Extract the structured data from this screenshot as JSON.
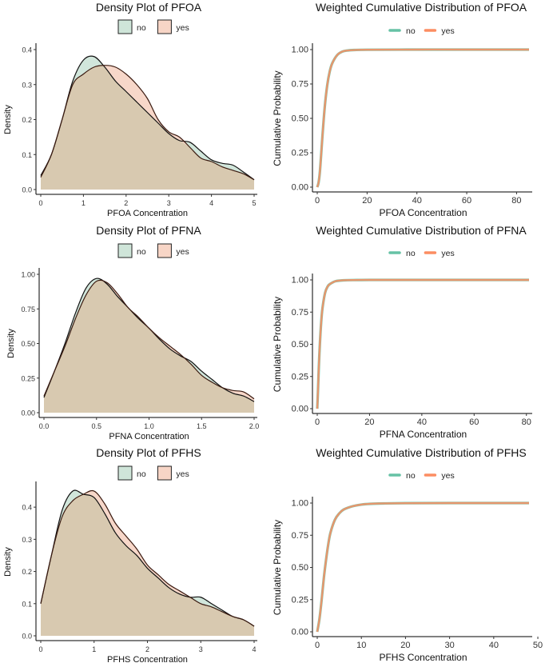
{
  "chart_data": [
    {
      "type": "area",
      "title": "Density Plot of PFOA",
      "xlabel": "PFOA Concentration",
      "ylabel": "Density",
      "xlim": [
        0,
        5
      ],
      "ylim": [
        0,
        0.4
      ],
      "xticks": [
        0,
        1,
        2,
        3,
        4,
        5
      ],
      "xtick_labels": [
        "0",
        "1",
        "2",
        "3",
        "4",
        "5"
      ],
      "yticks": [
        0,
        0.1,
        0.2,
        0.3,
        0.4
      ],
      "ytick_labels": [
        "0.0",
        "0.1",
        "0.2",
        "0.3",
        "0.4"
      ],
      "legend": [
        "no",
        "yes"
      ],
      "legend_position": "top",
      "series": [
        {
          "name": "no",
          "color": "#66c2a5",
          "x": [
            0,
            0.25,
            0.5,
            0.75,
            1.0,
            1.25,
            1.5,
            1.75,
            2.0,
            2.25,
            2.5,
            2.75,
            3.0,
            3.25,
            3.5,
            3.75,
            4.0,
            4.25,
            4.5,
            4.75,
            5.0
          ],
          "y": [
            0.04,
            0.1,
            0.2,
            0.31,
            0.37,
            0.38,
            0.35,
            0.31,
            0.28,
            0.25,
            0.22,
            0.19,
            0.16,
            0.14,
            0.135,
            0.11,
            0.085,
            0.075,
            0.07,
            0.05,
            0.028
          ]
        },
        {
          "name": "yes",
          "color": "#fc8d62",
          "x": [
            0,
            0.25,
            0.5,
            0.75,
            1.0,
            1.25,
            1.5,
            1.75,
            2.0,
            2.25,
            2.5,
            2.75,
            3.0,
            3.25,
            3.5,
            3.75,
            4.0,
            4.25,
            4.5,
            4.75,
            5.0
          ],
          "y": [
            0.035,
            0.1,
            0.2,
            0.3,
            0.33,
            0.35,
            0.355,
            0.35,
            0.33,
            0.3,
            0.26,
            0.2,
            0.165,
            0.15,
            0.12,
            0.09,
            0.08,
            0.065,
            0.055,
            0.045,
            0.028
          ]
        }
      ]
    },
    {
      "type": "line",
      "title": "Weighted Cumulative Distribution of PFOA",
      "xlabel": "PFOA Concentration",
      "ylabel": "Cumulative Probability",
      "xlim": [
        0,
        85
      ],
      "ylim": [
        0,
        1
      ],
      "xticks": [
        0,
        20,
        40,
        60,
        80
      ],
      "xtick_labels": [
        "0",
        "20",
        "40",
        "60",
        "80"
      ],
      "yticks": [
        0,
        0.25,
        0.5,
        0.75,
        1.0
      ],
      "ytick_labels": [
        "0.00",
        "0.25",
        "0.50",
        "0.75",
        "1.00"
      ],
      "legend": [
        "no",
        "yes"
      ],
      "legend_position": "top",
      "series": [
        {
          "name": "no",
          "color": "#66c2a5",
          "x": [
            0,
            0.5,
            1,
            1.5,
            2,
            3,
            4,
            5,
            6,
            8,
            10,
            12,
            15,
            20,
            40,
            60,
            85
          ],
          "y": [
            0,
            0.03,
            0.1,
            0.22,
            0.35,
            0.58,
            0.74,
            0.84,
            0.9,
            0.96,
            0.985,
            0.993,
            0.997,
            0.999,
            1.0,
            1.0,
            1.0
          ]
        },
        {
          "name": "yes",
          "color": "#fc8d62",
          "x": [
            0,
            0.5,
            1,
            1.5,
            2,
            3,
            4,
            5,
            6,
            8,
            10,
            12,
            15,
            20,
            40,
            60,
            85
          ],
          "y": [
            0,
            0.03,
            0.1,
            0.22,
            0.35,
            0.58,
            0.74,
            0.84,
            0.9,
            0.96,
            0.985,
            0.993,
            0.997,
            0.999,
            1.0,
            1.0,
            1.0
          ]
        }
      ]
    },
    {
      "type": "area",
      "title": "Density Plot of PFNA",
      "xlabel": "PFNA Concentration",
      "ylabel": "Density",
      "xlim": [
        0,
        2
      ],
      "ylim": [
        0,
        1
      ],
      "xticks": [
        0,
        0.5,
        1.0,
        1.5,
        2.0
      ],
      "xtick_labels": [
        "0.0",
        "0.5",
        "1.0",
        "1.5",
        "2.0"
      ],
      "yticks": [
        0,
        0.25,
        0.5,
        0.75,
        1.0
      ],
      "ytick_labels": [
        "0.00",
        "0.25",
        "0.50",
        "0.75",
        "1.00"
      ],
      "legend": [
        "no",
        "yes"
      ],
      "legend_position": "top",
      "series": [
        {
          "name": "no",
          "color": "#66c2a5",
          "x": [
            0,
            0.1,
            0.2,
            0.3,
            0.4,
            0.5,
            0.6,
            0.7,
            0.8,
            0.9,
            1.0,
            1.1,
            1.2,
            1.3,
            1.4,
            1.5,
            1.6,
            1.7,
            1.8,
            1.9,
            2.0
          ],
          "y": [
            0.11,
            0.3,
            0.5,
            0.72,
            0.9,
            0.97,
            0.93,
            0.84,
            0.76,
            0.68,
            0.61,
            0.53,
            0.46,
            0.41,
            0.37,
            0.3,
            0.24,
            0.18,
            0.14,
            0.12,
            0.08
          ]
        },
        {
          "name": "yes",
          "color": "#fc8d62",
          "x": [
            0,
            0.1,
            0.2,
            0.3,
            0.4,
            0.5,
            0.6,
            0.7,
            0.8,
            0.9,
            1.0,
            1.1,
            1.2,
            1.3,
            1.4,
            1.5,
            1.6,
            1.7,
            1.8,
            1.9,
            2.0
          ],
          "y": [
            0.12,
            0.3,
            0.48,
            0.68,
            0.85,
            0.95,
            0.94,
            0.86,
            0.76,
            0.69,
            0.61,
            0.54,
            0.48,
            0.42,
            0.35,
            0.27,
            0.22,
            0.18,
            0.16,
            0.15,
            0.1
          ]
        }
      ]
    },
    {
      "type": "line",
      "title": "Weighted Cumulative Distribution of PFNA",
      "xlabel": "PFNA Concentration",
      "ylabel": "Cumulative Probability",
      "xlim": [
        0,
        81
      ],
      "ylim": [
        0,
        1
      ],
      "xticks": [
        0,
        20,
        40,
        60,
        80
      ],
      "xtick_labels": [
        "0",
        "20",
        "40",
        "60",
        "80"
      ],
      "yticks": [
        0,
        0.25,
        0.5,
        0.75,
        1.0
      ],
      "ytick_labels": [
        "0.00",
        "0.25",
        "0.50",
        "0.75",
        "1.00"
      ],
      "legend": [
        "no",
        "yes"
      ],
      "legend_position": "top",
      "series": [
        {
          "name": "no",
          "color": "#66c2a5",
          "x": [
            0,
            0.3,
            0.6,
            1,
            1.5,
            2,
            3,
            4,
            5,
            7,
            10,
            15,
            20,
            40,
            60,
            81
          ],
          "y": [
            0,
            0.15,
            0.32,
            0.5,
            0.67,
            0.78,
            0.9,
            0.95,
            0.97,
            0.99,
            0.997,
            0.999,
            1.0,
            1.0,
            1.0,
            1.0
          ]
        },
        {
          "name": "yes",
          "color": "#fc8d62",
          "x": [
            0,
            0.3,
            0.6,
            1,
            1.5,
            2,
            3,
            4,
            5,
            7,
            10,
            15,
            20,
            40,
            60,
            81
          ],
          "y": [
            0,
            0.15,
            0.32,
            0.5,
            0.67,
            0.78,
            0.9,
            0.95,
            0.97,
            0.99,
            0.997,
            0.999,
            1.0,
            1.0,
            1.0,
            1.0
          ]
        }
      ]
    },
    {
      "type": "area",
      "title": "Density Plot of PFHS",
      "xlabel": "PFHS Concentration",
      "ylabel": "Density",
      "xlim": [
        0,
        4
      ],
      "ylim": [
        0,
        0.46
      ],
      "xticks": [
        0,
        1,
        2,
        3,
        4
      ],
      "xtick_labels": [
        "0",
        "1",
        "2",
        "3",
        "4"
      ],
      "yticks": [
        0,
        0.1,
        0.2,
        0.3,
        0.4
      ],
      "ytick_labels": [
        "0.0",
        "0.1",
        "0.2",
        "0.3",
        "0.4"
      ],
      "legend": [
        "no",
        "yes"
      ],
      "legend_position": "top",
      "series": [
        {
          "name": "no",
          "color": "#66c2a5",
          "x": [
            0,
            0.2,
            0.4,
            0.6,
            0.8,
            1.0,
            1.2,
            1.4,
            1.6,
            1.8,
            2.0,
            2.2,
            2.4,
            2.6,
            2.8,
            3.0,
            3.2,
            3.4,
            3.6,
            3.8,
            4.0
          ],
          "y": [
            0.1,
            0.25,
            0.39,
            0.45,
            0.44,
            0.43,
            0.38,
            0.32,
            0.28,
            0.25,
            0.21,
            0.18,
            0.15,
            0.13,
            0.12,
            0.12,
            0.1,
            0.08,
            0.06,
            0.05,
            0.03
          ]
        },
        {
          "name": "yes",
          "color": "#fc8d62",
          "x": [
            0,
            0.2,
            0.4,
            0.6,
            0.8,
            1.0,
            1.2,
            1.4,
            1.6,
            1.8,
            2.0,
            2.2,
            2.4,
            2.6,
            2.8,
            3.0,
            3.2,
            3.4,
            3.6,
            3.8,
            4.0
          ],
          "y": [
            0.1,
            0.25,
            0.37,
            0.42,
            0.44,
            0.45,
            0.41,
            0.35,
            0.31,
            0.27,
            0.22,
            0.19,
            0.16,
            0.14,
            0.12,
            0.1,
            0.09,
            0.075,
            0.06,
            0.05,
            0.03
          ]
        }
      ]
    },
    {
      "type": "line",
      "title": "Weighted Cumulative Distribution of PFHS",
      "xlabel": "PFHS Concentration",
      "ylabel": "Cumulative Probability",
      "xlim": [
        0,
        48
      ],
      "ylim": [
        0,
        1
      ],
      "xticks": [
        0,
        10,
        20,
        30,
        40,
        50
      ],
      "xtick_labels": [
        "0",
        "10",
        "20",
        "30",
        "40",
        "50"
      ],
      "yticks": [
        0,
        0.25,
        0.5,
        0.75,
        1.0
      ],
      "ytick_labels": [
        "0.00",
        "0.25",
        "0.50",
        "0.75",
        "1.00"
      ],
      "legend": [
        "no",
        "yes"
      ],
      "legend_position": "top",
      "series": [
        {
          "name": "no",
          "color": "#66c2a5",
          "x": [
            0,
            0.5,
            1,
            1.5,
            2,
            2.5,
            3,
            4,
            5,
            6,
            8,
            10,
            12,
            15,
            20,
            30,
            48
          ],
          "y": [
            0,
            0.1,
            0.25,
            0.42,
            0.56,
            0.68,
            0.77,
            0.87,
            0.92,
            0.95,
            0.975,
            0.988,
            0.994,
            0.997,
            0.999,
            1.0,
            1.0
          ]
        },
        {
          "name": "yes",
          "color": "#fc8d62",
          "x": [
            0,
            0.5,
            1,
            1.5,
            2,
            2.5,
            3,
            4,
            5,
            6,
            8,
            10,
            12,
            15,
            20,
            30,
            48
          ],
          "y": [
            0,
            0.1,
            0.25,
            0.42,
            0.56,
            0.68,
            0.77,
            0.87,
            0.92,
            0.95,
            0.975,
            0.988,
            0.994,
            0.997,
            0.999,
            1.0,
            1.0
          ]
        }
      ]
    }
  ]
}
